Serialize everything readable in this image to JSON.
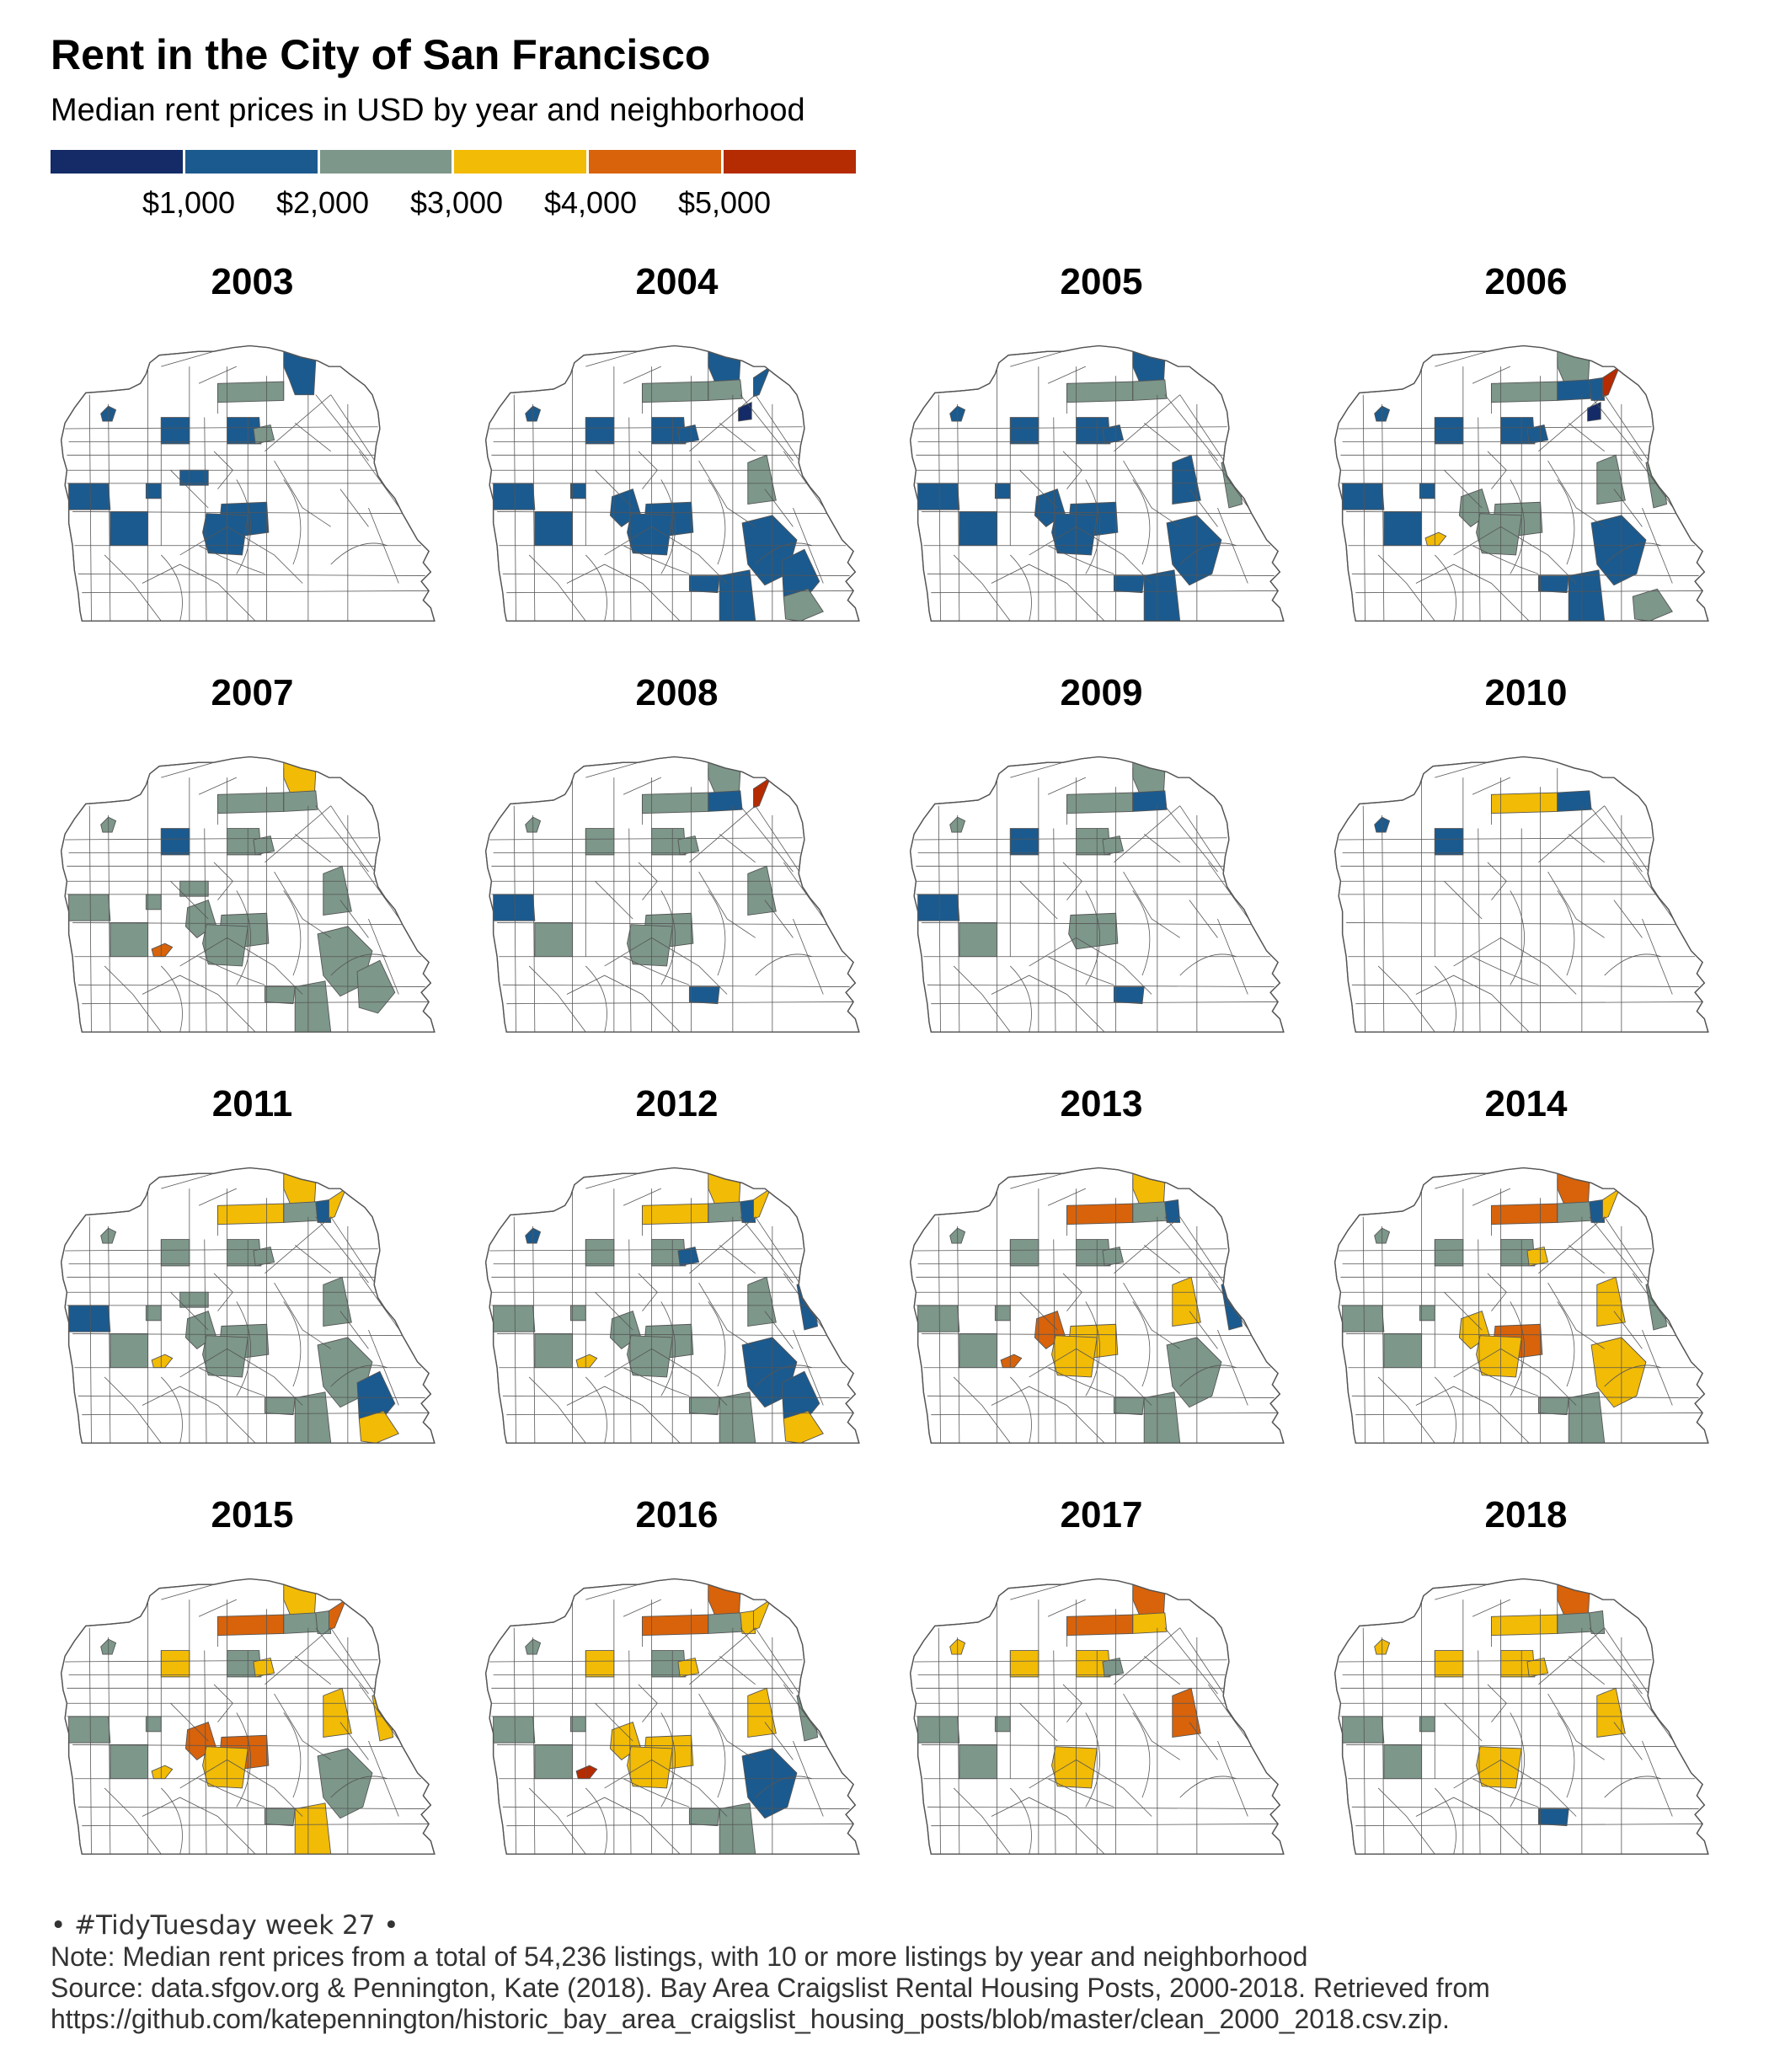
{
  "title": "Rent in the City of San Francisco",
  "subtitle": "Median rent prices in USD by year and neighborhood",
  "legend": {
    "colors": [
      "#142b67",
      "#1b5a8e",
      "#7d978a",
      "#f2bb05",
      "#d8630b",
      "#b52b02"
    ],
    "labels": [
      "$1,000",
      "$2,000",
      "$3,000",
      "$4,000",
      "$5,000"
    ]
  },
  "map_colors": {
    "none": "#ffffff",
    "stroke": "#555555"
  },
  "panels": [
    {
      "year": "2003",
      "fills": {
        "d1": 1,
        "c1": 2,
        "b1": 1,
        "b3": 1,
        "b5": 1,
        "e6": 2,
        "h1": 1,
        "g3": 1,
        "i4": 1,
        "r1": 1,
        "r2": 1,
        "k1": 1
      }
    },
    {
      "year": "2004",
      "fills": {
        "d1": 1,
        "c1": 2,
        "c2": 2,
        "m1": 0,
        "m2": 1,
        "b1": 1,
        "b3": 1,
        "b5": 1,
        "e6": 1,
        "h1": 1,
        "r1": 1,
        "r2": 1,
        "g3": 1,
        "i3": 1,
        "i4": 1,
        "m5": 2,
        "q1": 1,
        "t2": 1,
        "t3": 1,
        "t5": 1,
        "p1": 2
      }
    },
    {
      "year": "2005",
      "fills": {
        "d1": 1,
        "c1": 2,
        "c2": 2,
        "b1": 1,
        "b3": 1,
        "b5": 1,
        "e6": 1,
        "h1": 1,
        "r1": 1,
        "r2": 1,
        "g3": 1,
        "i3": 1,
        "i4": 1,
        "m5": 1,
        "q1": 1,
        "t2": 1,
        "t3": 1,
        "u1": 2
      }
    },
    {
      "year": "2006",
      "fills": {
        "d1": 2,
        "c1": 2,
        "c2": 1,
        "c3": 1,
        "m1": 0,
        "m2": 5,
        "b1": 1,
        "b3": 1,
        "b5": 1,
        "e6": 1,
        "h1": 1,
        "r1": 1,
        "r2": 1,
        "j2": 3,
        "g3": 2,
        "i3": 2,
        "i4": 2,
        "m5": 2,
        "q1": 1,
        "t2": 1,
        "t3": 1,
        "p1": 2,
        "u1": 2
      }
    },
    {
      "year": "2007",
      "fills": {
        "d1": 3,
        "c1": 2,
        "c2": 2,
        "b1": 2,
        "b3": 1,
        "b5": 2,
        "e6": 2,
        "h1": 2,
        "r1": 2,
        "r2": 2,
        "j2": 4,
        "g3": 2,
        "i3": 2,
        "i4": 2,
        "m5": 2,
        "q1": 2,
        "t2": 2,
        "t3": 2,
        "t5": 2,
        "k1": 2
      }
    },
    {
      "year": "2008",
      "fills": {
        "d1": 2,
        "c1": 2,
        "c2": 1,
        "m2": 5,
        "b1": 2,
        "b3": 2,
        "b5": 2,
        "e6": 2,
        "h1": 1,
        "r2": 2,
        "g3": 2,
        "i4": 2,
        "m5": 2,
        "q1": 1
      }
    },
    {
      "year": "2009",
      "fills": {
        "d1": 2,
        "c1": 2,
        "c2": 1,
        "b1": 2,
        "b3": 1,
        "b5": 2,
        "e6": 2,
        "h1": 1,
        "r2": 2,
        "g3": 2,
        "q1": 1
      }
    },
    {
      "year": "2010",
      "fills": {
        "c1": 3,
        "c2": 1,
        "b1": 1,
        "b3": 1
      }
    },
    {
      "year": "2011",
      "fills": {
        "d1": 3,
        "c1": 3,
        "c2": 2,
        "c3": 1,
        "m2": 3,
        "b1": 2,
        "b3": 2,
        "b5": 2,
        "e6": 2,
        "h1": 1,
        "r1": 2,
        "r2": 2,
        "j2": 3,
        "g3": 2,
        "i3": 2,
        "i4": 2,
        "m5": 2,
        "q1": 2,
        "t2": 2,
        "t3": 2,
        "t5": 1,
        "p1": 3,
        "k1": 2
      }
    },
    {
      "year": "2012",
      "fills": {
        "d1": 3,
        "c1": 3,
        "c2": 2,
        "c3": 1,
        "m2": 3,
        "b1": 1,
        "b3": 2,
        "b5": 2,
        "e6": 1,
        "h1": 2,
        "r1": 2,
        "r2": 2,
        "j2": 3,
        "g3": 2,
        "i3": 2,
        "i4": 2,
        "m5": 2,
        "q1": 2,
        "t2": 1,
        "t3": 2,
        "t5": 1,
        "p1": 3,
        "u1": 1
      }
    },
    {
      "year": "2013",
      "fills": {
        "d1": 3,
        "c1": 4,
        "c2": 2,
        "c3": 1,
        "b1": 2,
        "b3": 2,
        "b5": 2,
        "e6": 2,
        "h1": 2,
        "r1": 2,
        "r2": 2,
        "j2": 4,
        "g3": 3,
        "i3": 4,
        "i4": 3,
        "m5": 3,
        "q1": 2,
        "t2": 2,
        "t3": 2,
        "u1": 1
      }
    },
    {
      "year": "2014",
      "fills": {
        "d1": 4,
        "c1": 4,
        "c2": 2,
        "c3": 1,
        "m2": 3,
        "b1": 2,
        "b3": 2,
        "b5": 2,
        "e6": 3,
        "h1": 2,
        "r1": 2,
        "r2": 2,
        "g3": 4,
        "i3": 3,
        "i4": 3,
        "m5": 3,
        "q1": 2,
        "t2": 3,
        "t3": 2,
        "u1": 2
      }
    },
    {
      "year": "2015",
      "fills": {
        "d1": 3,
        "c1": 4,
        "c2": 2,
        "c3": 2,
        "m2": 4,
        "b1": 2,
        "b3": 3,
        "b5": 2,
        "e6": 3,
        "h1": 2,
        "r1": 2,
        "r2": 2,
        "j2": 3,
        "g3": 4,
        "i3": 4,
        "i4": 3,
        "m5": 3,
        "q1": 2,
        "t2": 2,
        "t3": 3,
        "u1": 3
      }
    },
    {
      "year": "2016",
      "fills": {
        "d1": 4,
        "c1": 4,
        "c2": 2,
        "c3": 3,
        "m2": 3,
        "b1": 2,
        "b3": 3,
        "b5": 2,
        "e6": 3,
        "h1": 2,
        "r1": 2,
        "r2": 2,
        "j2": 5,
        "g3": 3,
        "i3": 3,
        "i4": 3,
        "m5": 3,
        "q1": 2,
        "t2": 1,
        "t3": 2,
        "u1": 2
      }
    },
    {
      "year": "2017",
      "fills": {
        "d1": 4,
        "c1": 4,
        "c2": 3,
        "b1": 3,
        "b3": 3,
        "b5": 3,
        "e6": 2,
        "h1": 2,
        "r1": 2,
        "r2": 2,
        "i4": 3,
        "m5": 4
      }
    },
    {
      "year": "2018",
      "fills": {
        "d1": 4,
        "c1": 3,
        "c2": 2,
        "c3": 2,
        "b1": 3,
        "b3": 3,
        "b5": 3,
        "e6": 3,
        "h1": 2,
        "r1": 2,
        "r2": 2,
        "i4": 3,
        "m5": 3,
        "q1": 1
      }
    }
  ],
  "caption": {
    "tag": "•  #TidyTuesday week 27  •",
    "note": "Note: Median rent prices from a total of 54,236 listings, with 10 or more listings by year and neighborhood",
    "source1": "Source: data.sfgov.org & Pennington, Kate (2018). Bay Area Craigslist Rental Housing Posts, 2000-2018. Retrieved from",
    "source2": "https://github.com/katepennington/historic_bay_area_craigslist_housing_posts/blob/master/clean_2000_2018.csv.zip."
  }
}
